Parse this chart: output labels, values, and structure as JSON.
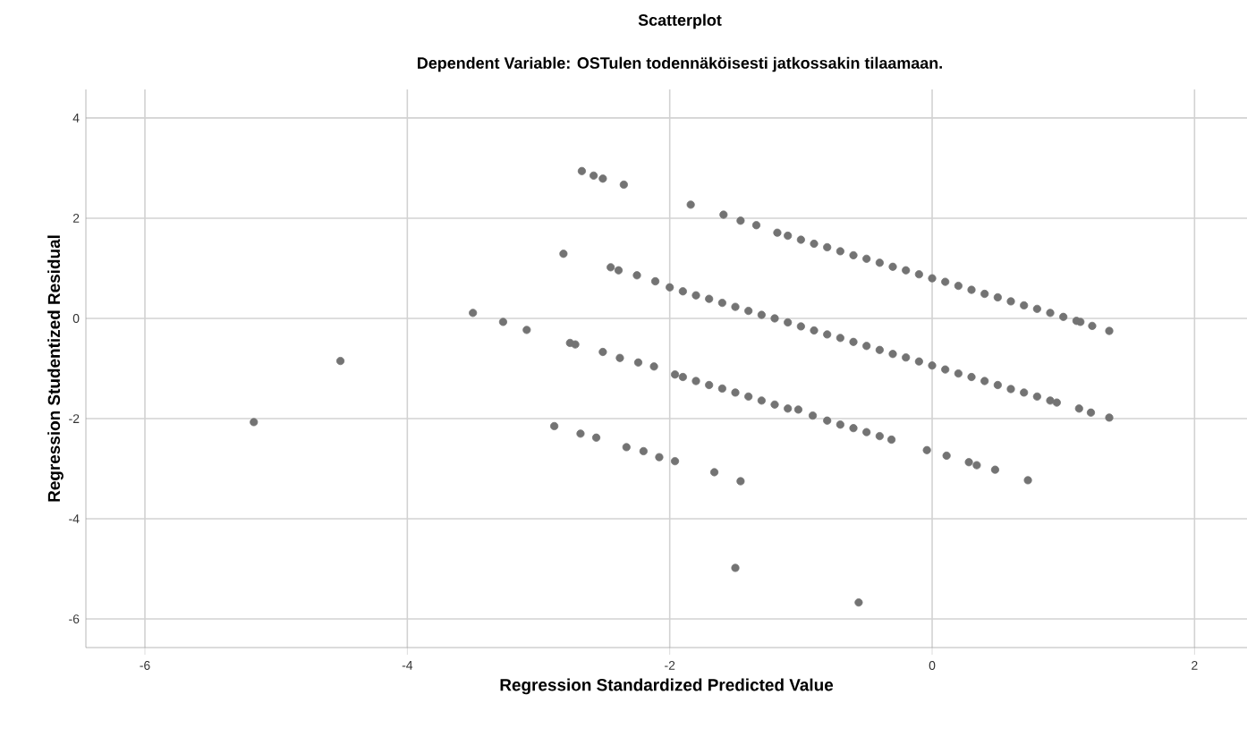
{
  "chart_data": {
    "type": "scatter",
    "title": "Scatterplot",
    "subtitle": "Dependent Variable: OSTulen todennäköisesti jatkossakin tilaamaan.",
    "xlabel": "Regression Standardized Predicted Value",
    "ylabel": "Regression Studentized Residual",
    "xlim": [
      -6.45,
      2.4
    ],
    "ylim": [
      -6.57,
      4.57
    ],
    "xticks": [
      -6,
      -4,
      -2,
      0,
      2
    ],
    "yticks": [
      -6,
      -4,
      -2,
      0,
      2,
      4
    ],
    "grid": true,
    "series": [
      {
        "color": "#737373",
        "x": [
          -5.17,
          -4.51,
          -3.5,
          -3.27,
          -3.09,
          -2.88,
          -2.81,
          -2.76,
          -2.72,
          -2.68,
          -2.67,
          -2.58,
          -2.56,
          -2.51,
          -2.51,
          -2.45,
          -2.39,
          -2.38,
          -2.35,
          -2.33,
          -2.25,
          -2.24,
          -2.2,
          -2.12,
          -2.11,
          -2.08,
          -2.0,
          -1.96,
          -1.96,
          -1.84,
          -1.8,
          -1.8,
          -1.66,
          -1.6,
          -1.6,
          -1.59,
          -1.5,
          -1.46,
          -1.46,
          -1.4,
          -1.4,
          -1.34,
          -1.2,
          -1.2,
          -1.18,
          -1.02,
          -1.0,
          -1.0,
          -0.91,
          -0.8,
          -0.8,
          -0.8,
          -0.6,
          -0.6,
          -0.6,
          -0.56,
          -0.4,
          -0.4,
          -0.4,
          -0.31,
          -0.2,
          -0.2,
          -0.04,
          0,
          0,
          0.11,
          0.2,
          0.2,
          0.28,
          0.34,
          0.4,
          0.4,
          0.48,
          0.6,
          0.6,
          0.73,
          0.8,
          0.8,
          0.95,
          1.0,
          1.12,
          1.13,
          1.21,
          1.22,
          1.35,
          1.35,
          -1.1,
          -0.9,
          -0.7,
          -0.5,
          -0.3,
          -0.1,
          0.1,
          0.3,
          0.5,
          0.7,
          0.9,
          1.1,
          -1.9,
          -1.7,
          -1.5,
          -1.3,
          -1.1,
          -0.9,
          -0.7,
          -0.5,
          -0.3,
          -0.1,
          0.1,
          0.3,
          0.5,
          0.7,
          0.9,
          -1.9,
          -1.7,
          -1.5,
          -1.3,
          -1.1,
          -0.7,
          -0.5
        ],
        "values": [
          -2.07,
          -0.85,
          0.11,
          -0.07,
          -0.23,
          -2.15,
          1.29,
          -0.49,
          -0.52,
          -2.3,
          2.94,
          2.85,
          -2.38,
          2.79,
          -0.67,
          1.02,
          0.96,
          -0.79,
          2.67,
          -2.57,
          0.86,
          -0.88,
          -2.65,
          -0.96,
          0.74,
          -2.77,
          0.62,
          -1.12,
          -2.85,
          2.27,
          0.46,
          -1.25,
          -3.07,
          0.31,
          -1.4,
          2.07,
          -4.98,
          1.95,
          -3.25,
          0.15,
          -1.56,
          1.86,
          0.0,
          -1.72,
          1.71,
          -1.82,
          1.57,
          -0.16,
          -1.94,
          1.42,
          -0.32,
          -2.04,
          1.26,
          -0.47,
          -2.19,
          -5.67,
          1.11,
          -0.63,
          -2.35,
          -2.42,
          0.96,
          -0.78,
          -2.63,
          0.8,
          -0.94,
          -2.74,
          0.65,
          -1.1,
          -2.87,
          -2.93,
          0.49,
          -1.25,
          -3.02,
          0.34,
          -1.41,
          -3.23,
          0.19,
          -1.56,
          -1.68,
          0.03,
          -1.8,
          -0.07,
          -1.88,
          -0.15,
          -0.25,
          -1.98,
          1.65,
          1.49,
          1.34,
          1.19,
          1.03,
          0.88,
          0.73,
          0.57,
          0.42,
          0.26,
          0.11,
          -0.05,
          0.54,
          0.39,
          0.23,
          0.07,
          -0.08,
          -0.24,
          -0.39,
          -0.55,
          -0.71,
          -0.86,
          -1.02,
          -1.17,
          -1.33,
          -1.48,
          -1.64,
          -1.17,
          -1.33,
          -1.48,
          -1.64,
          -1.8,
          -2.12,
          -2.27
        ]
      }
    ]
  }
}
